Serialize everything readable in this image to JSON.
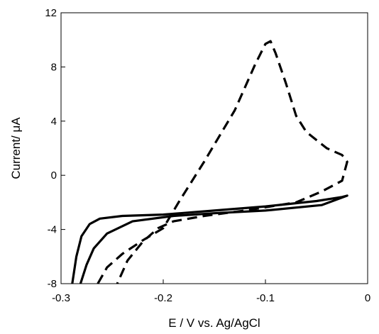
{
  "chart_data": {
    "type": "line",
    "title": "",
    "xlabel": "E / V vs. Ag/AgCl",
    "ylabel": "Current/ μA",
    "xlim": [
      -0.3,
      0
    ],
    "ylim": [
      -8,
      12
    ],
    "xticks": [
      -0.3,
      -0.2,
      -0.1,
      0
    ],
    "xtick_labels": [
      "-0.3",
      "-0.2",
      "-0.1",
      "0"
    ],
    "yticks": [
      -8,
      -4,
      0,
      4,
      8,
      12
    ],
    "ytick_labels": [
      "-8",
      "-4",
      "0",
      "4",
      "8",
      "12"
    ],
    "grid": false,
    "legend": "none",
    "series": [
      {
        "style": "solid",
        "color": "#000000",
        "x": [
          -0.289,
          -0.285,
          -0.28,
          -0.272,
          -0.262,
          -0.24,
          -0.2,
          -0.15,
          -0.1,
          -0.05,
          -0.025,
          -0.02,
          -0.045,
          -0.1,
          -0.15,
          -0.19,
          -0.23,
          -0.255,
          -0.268,
          -0.275,
          -0.281
        ],
        "y": [
          -8.0,
          -6.0,
          -4.5,
          -3.6,
          -3.2,
          -3.0,
          -2.9,
          -2.6,
          -2.3,
          -1.9,
          -1.6,
          -1.5,
          -2.2,
          -2.6,
          -2.8,
          -3.0,
          -3.4,
          -4.3,
          -5.4,
          -6.6,
          -8.0
        ]
      },
      {
        "style": "dashed",
        "color": "#000000",
        "x": [
          -0.264,
          -0.255,
          -0.24,
          -0.22,
          -0.2,
          -0.185,
          -0.16,
          -0.13,
          -0.11,
          -0.1,
          -0.095,
          -0.09,
          -0.08,
          -0.07,
          -0.06,
          -0.04,
          -0.025,
          -0.02,
          -0.025,
          -0.045,
          -0.07,
          -0.12,
          -0.16,
          -0.19,
          -0.205,
          -0.22,
          -0.235,
          -0.245
        ],
        "y": [
          -8.0,
          -6.8,
          -5.8,
          -4.8,
          -3.9,
          -2.0,
          1.0,
          4.8,
          8.2,
          9.7,
          9.9,
          9.0,
          6.8,
          4.4,
          3.2,
          2.0,
          1.5,
          1.0,
          -0.4,
          -1.2,
          -2.0,
          -2.6,
          -3.0,
          -3.4,
          -3.9,
          -4.9,
          -6.3,
          -8.0
        ]
      }
    ]
  }
}
